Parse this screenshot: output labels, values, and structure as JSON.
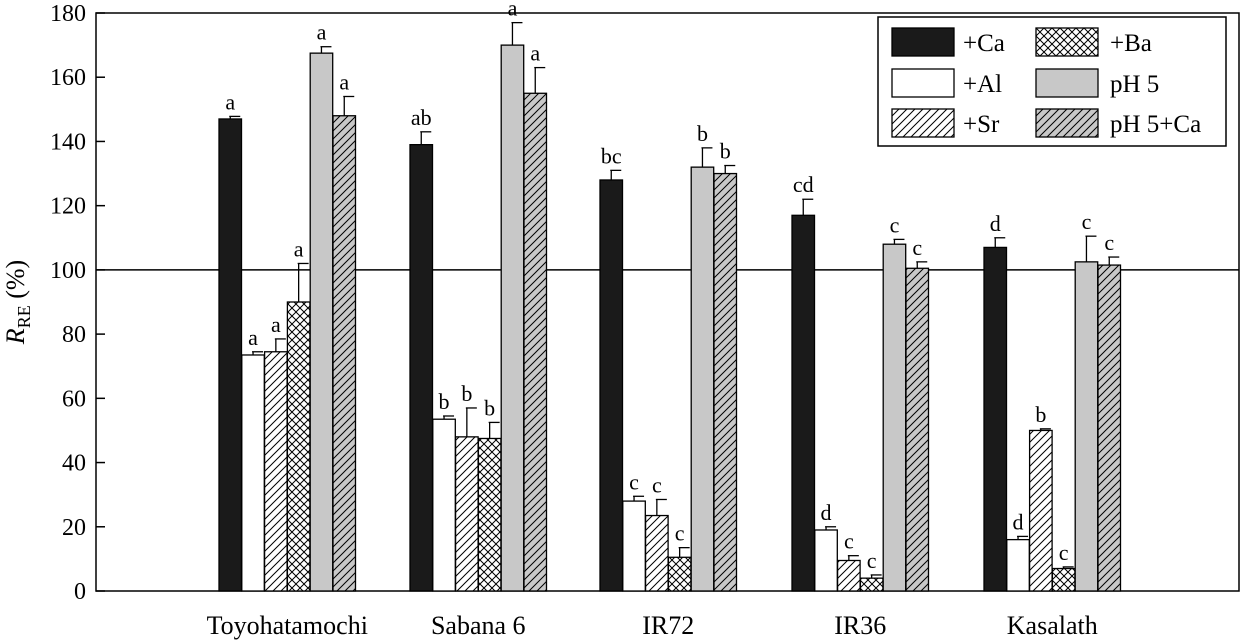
{
  "chart_data": {
    "type": "bar",
    "ylabel_main": "R",
    "ylabel_sub": "RE",
    "ylabel_unit": " (%)",
    "ylim": [
      0,
      180
    ],
    "yticks": [
      "0",
      "20",
      "40",
      "60",
      "80",
      "100",
      "120",
      "140",
      "160",
      "180"
    ],
    "reference_line": 100,
    "categories": [
      "Toyohatamochi",
      "Sabana 6",
      "IR72",
      "IR36",
      "Kasalath"
    ],
    "series": [
      {
        "name": "+Ca",
        "pattern": "solid-black",
        "values": [
          147,
          139,
          128,
          117,
          107
        ],
        "errors": [
          0.8,
          4,
          3,
          5,
          3
        ],
        "labels": [
          "a",
          "ab",
          "bc",
          "cd",
          "d"
        ]
      },
      {
        "name": "+Al",
        "pattern": "white",
        "values": [
          73.5,
          53.5,
          28,
          19,
          16
        ],
        "errors": [
          1,
          1,
          1.5,
          1,
          1
        ],
        "labels": [
          "a",
          "b",
          "c",
          "d",
          "d"
        ]
      },
      {
        "name": "+Sr",
        "pattern": "hatch",
        "values": [
          74.5,
          48,
          23.5,
          9.5,
          50
        ],
        "errors": [
          4,
          9,
          5,
          1.5,
          0.5
        ],
        "labels": [
          "a",
          "b",
          "c",
          "c",
          "b"
        ]
      },
      {
        "name": "+Ba",
        "pattern": "crosshatch",
        "values": [
          90,
          47.5,
          10.5,
          4,
          7
        ],
        "errors": [
          12,
          5,
          3,
          1,
          0.5
        ],
        "labels": [
          "a",
          "b",
          "c",
          "c",
          "c"
        ]
      },
      {
        "name": "pH 5",
        "pattern": "gray",
        "values": [
          167.5,
          170,
          132,
          108,
          102.5
        ],
        "errors": [
          2,
          7,
          6,
          1.5,
          8
        ],
        "labels": [
          "a",
          "a",
          "b",
          "c",
          "c"
        ]
      },
      {
        "name": "pH 5+Ca",
        "pattern": "gray-hatch",
        "values": [
          148,
          155,
          130,
          100.5,
          101.5
        ],
        "errors": [
          6,
          8,
          2.5,
          2,
          2.5
        ],
        "labels": [
          "a",
          "a",
          "b",
          "c",
          "c"
        ]
      }
    ],
    "legend_position": "top-right",
    "colors": {
      "black": "#1a1a1a",
      "gray": "#c8c8c8",
      "white": "#ffffff"
    }
  }
}
